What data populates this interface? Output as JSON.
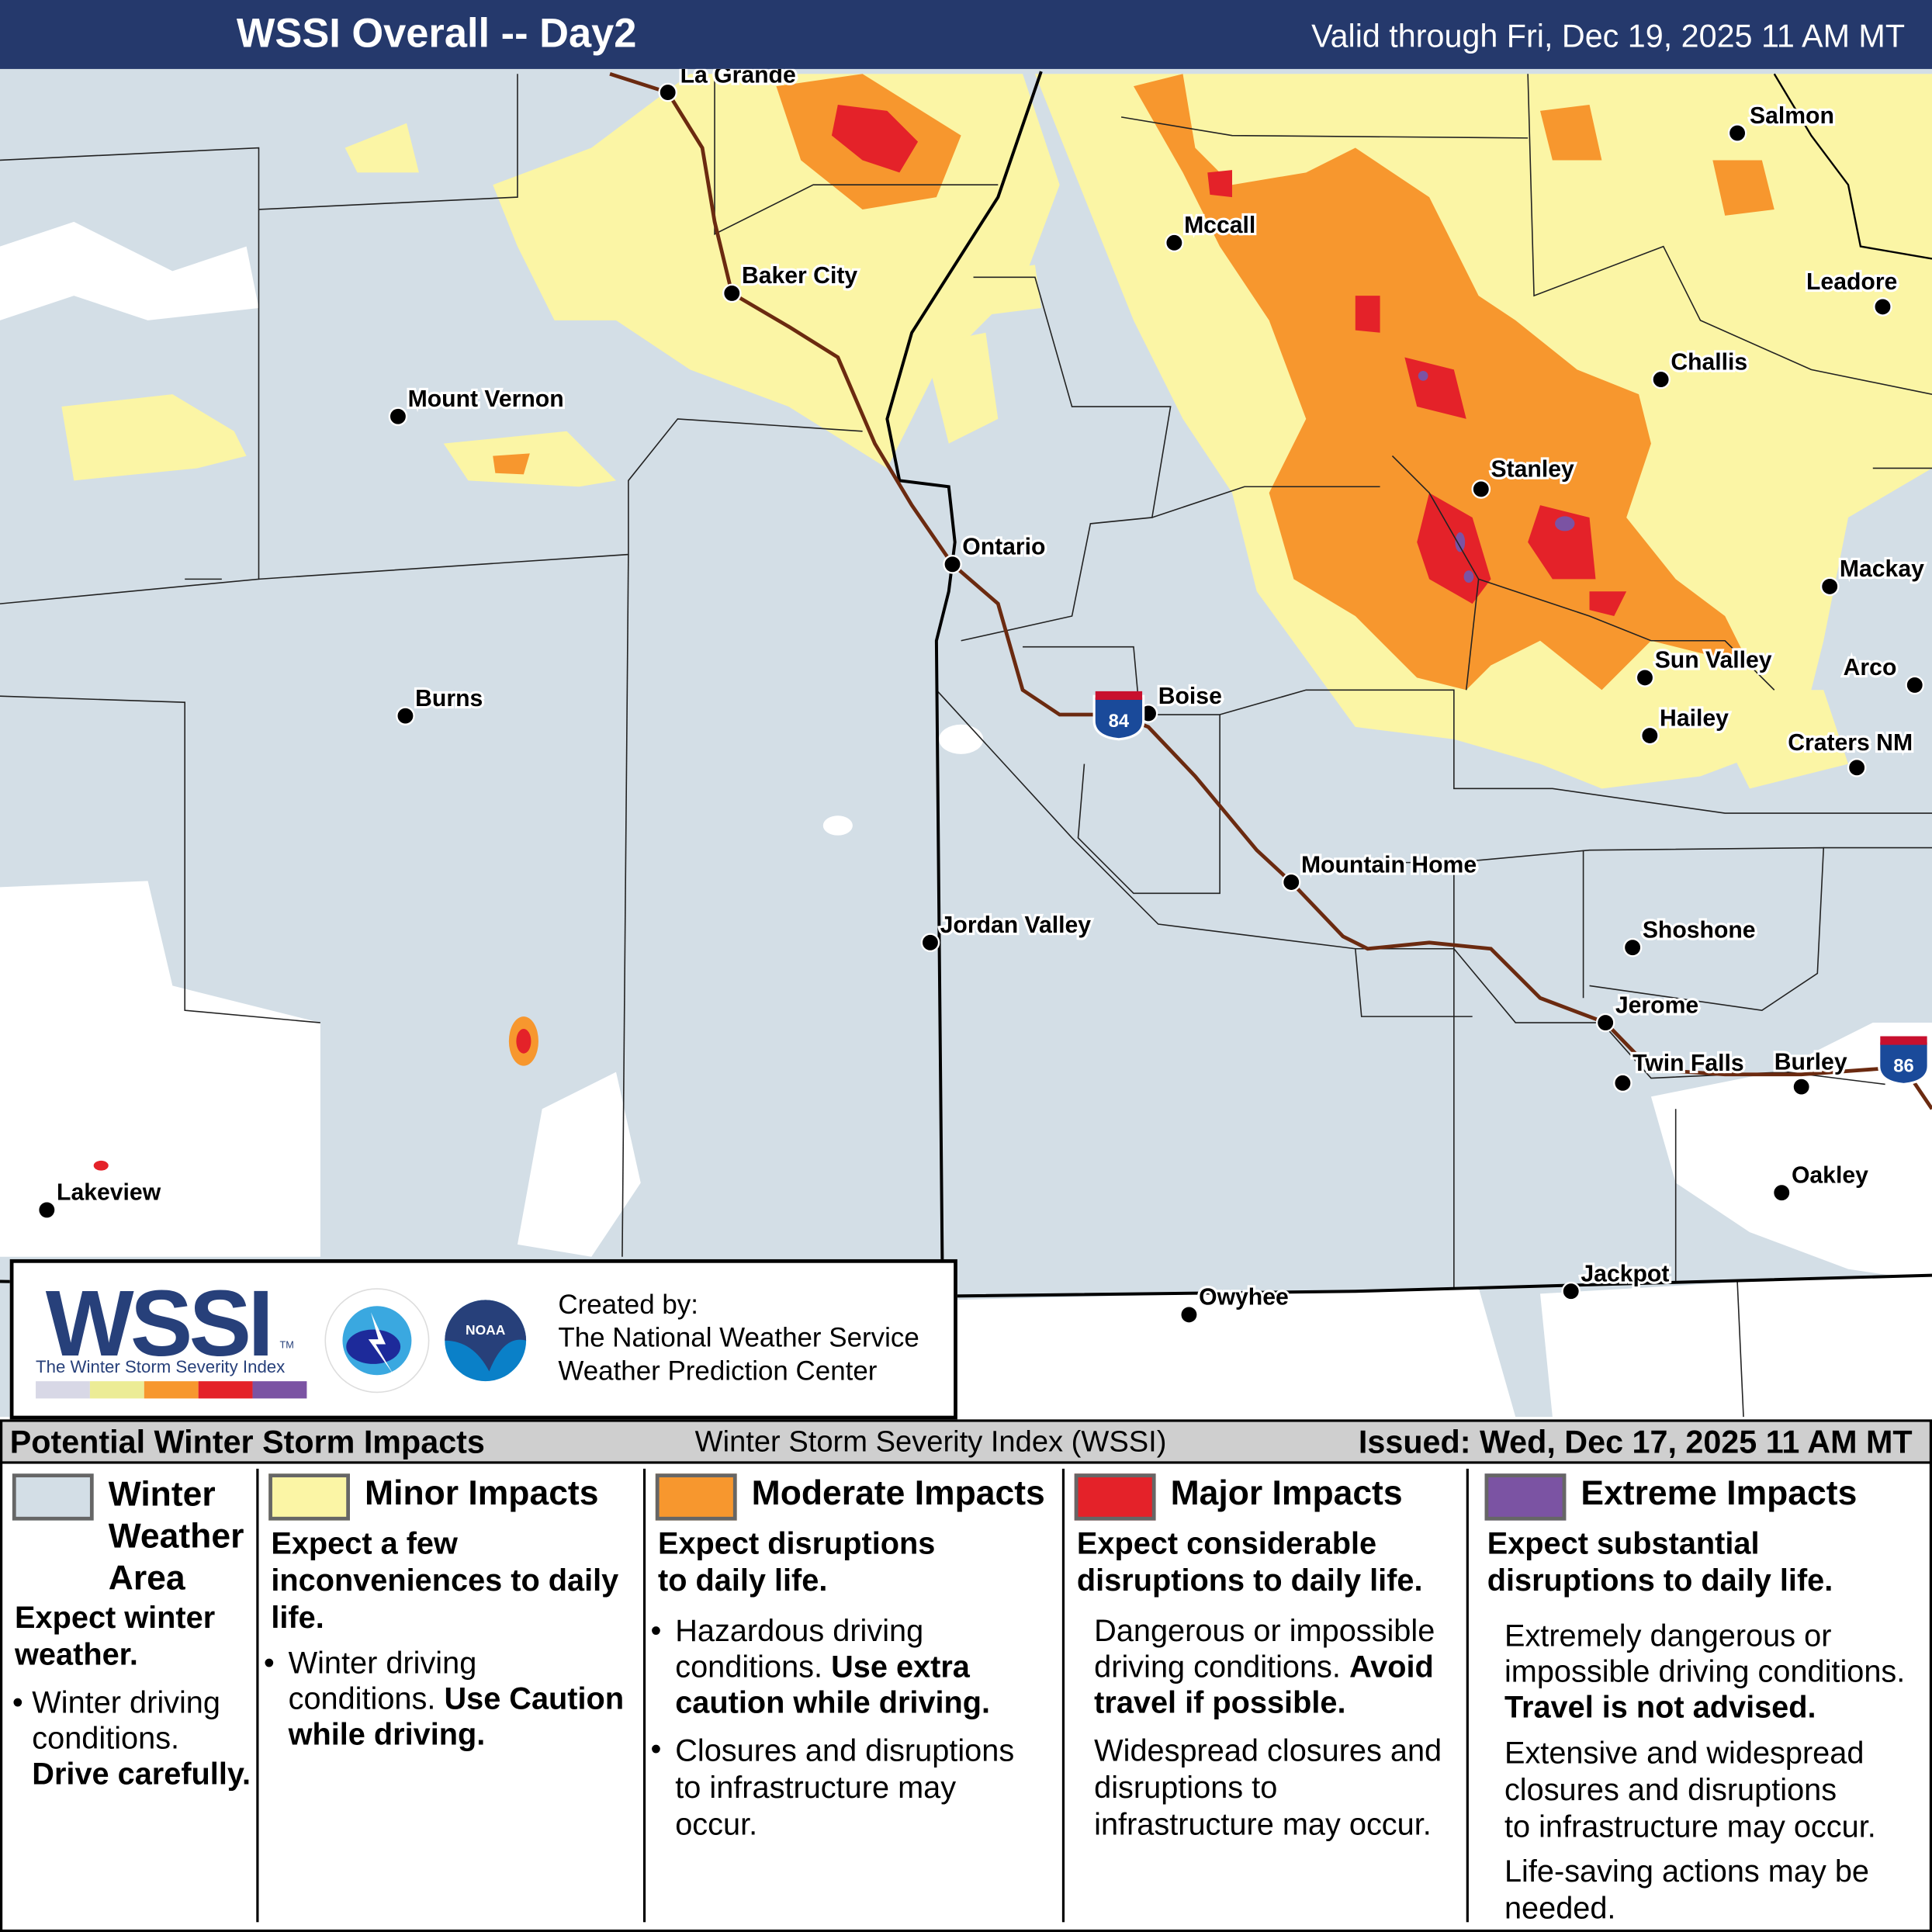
{
  "header": {
    "title": "WSSI Overall -- Day2",
    "valid": "Valid through Fri, Dec 19, 2025 11 AM MT"
  },
  "colors": {
    "header": "#25396c",
    "winter_weather_area": "#d3dee6",
    "minor": "#fbf5a5",
    "moderate": "#f7972e",
    "major": "#e42229",
    "extreme": "#7b53a3",
    "road": "#6b2a10"
  },
  "map": {
    "cities": [
      "La Grande",
      "Baker City",
      "Mount Vernon",
      "Burns",
      "Lakeview",
      "Ontario",
      "Mccall",
      "Boise",
      "Mountain Home",
      "Jordan Valley",
      "Salmon",
      "Leadore",
      "Challis",
      "Stanley",
      "Mackay",
      "Sun Valley",
      "Arco",
      "Hailey",
      "Craters NM",
      "Shoshone",
      "Jerome",
      "Twin Falls",
      "Burley",
      "Oakley",
      "Jackpot",
      "Owyhee"
    ],
    "shields": [
      "84",
      "86"
    ]
  },
  "logo": {
    "wssi": "WSSI",
    "tm": "TM",
    "subtitle": "The Winter Storm Severity Index",
    "created_by": "Created by:",
    "org1": "The National Weather Service",
    "org2": "Weather Prediction Center",
    "nws_icon": "nws-logo",
    "noaa_icon": "noaa-logo"
  },
  "legend_header": {
    "left": "Potential Winter Storm Impacts",
    "center": "Winter Storm Severity Index (WSSI)",
    "right": "Issued: Wed, Dec 17, 2025 11 AM MT"
  },
  "legend": {
    "winter": {
      "t1": "Winter",
      "t2": "Weather",
      "t3": "Area",
      "sub1": "Expect winter",
      "sub2": "weather.",
      "b1": "Winter driving",
      "b2": "conditions.",
      "b3": "Drive carefully."
    },
    "minor": {
      "title": "Minor Impacts",
      "sub1": "Expect a few",
      "sub2": "inconveniences to daily",
      "sub3": "life.",
      "b1": "Winter driving",
      "b2": "conditions.",
      "b2b": "Use Caution",
      "b3": "while driving."
    },
    "moderate": {
      "title": "Moderate Impacts",
      "sub1": "Expect disruptions",
      "sub2": "to daily life.",
      "b1": "Hazardous driving",
      "b2": "conditions.",
      "b2b": "Use extra",
      "b3": "caution while driving.",
      "c1": "Closures and disruptions",
      "c2": "to infrastructure may",
      "c3": "occur."
    },
    "major": {
      "title": "Major Impacts",
      "sub1": "Expect considerable",
      "sub2": "disruptions to daily life.",
      "d1": "Dangerous or impossible",
      "d2": "driving conditions.",
      "d2b": "Avoid",
      "d3": "travel if possible.",
      "w1": "Widespread closures and",
      "w2": "disruptions to",
      "w3": "infrastructure may occur."
    },
    "extreme": {
      "title": "Extreme Impacts",
      "sub1": "Expect substantial",
      "sub2": "disruptions to daily life.",
      "e1": "Extremely dangerous or",
      "e2": "impossible driving conditions.",
      "e3": "Travel is not advised.",
      "x1": "Extensive and widespread",
      "x2": "closures and disruptions",
      "x3": "to infrastructure may occur.",
      "l1": "Life-saving actions may be",
      "l2": "needed."
    }
  }
}
